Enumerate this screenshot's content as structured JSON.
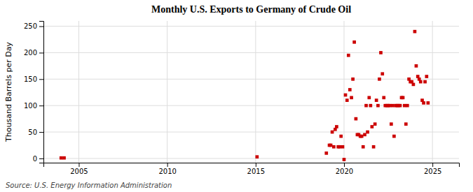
{
  "chart_data": {
    "type": "scatter",
    "title": "Monthly U.S. Exports to Germany of Crude Oil",
    "ylabel": "Thousand Barrels per Day",
    "source": "Source: U.S. Energy Information Administration",
    "color": "#cc0000",
    "marker": "square",
    "grid": true,
    "xlim": [
      2003.0,
      2026.5
    ],
    "ylim": [
      -8,
      260
    ],
    "xticks": [
      2005,
      2010,
      2015,
      2020,
      2025
    ],
    "yticks": [
      0,
      50,
      100,
      150,
      200,
      250
    ],
    "x": [
      2004.0,
      2004.17,
      2015.08,
      2019.0,
      2019.17,
      2019.25,
      2019.33,
      2019.42,
      2019.5,
      2019.58,
      2019.67,
      2019.75,
      2019.83,
      2019.92,
      2020.0,
      2020.08,
      2020.17,
      2020.25,
      2020.33,
      2020.42,
      2020.5,
      2020.58,
      2020.67,
      2020.75,
      2020.83,
      2020.92,
      2021.0,
      2021.08,
      2021.17,
      2021.25,
      2021.33,
      2021.42,
      2021.5,
      2021.58,
      2021.67,
      2021.75,
      2021.83,
      2021.92,
      2022.0,
      2022.08,
      2022.17,
      2022.25,
      2022.33,
      2022.42,
      2022.5,
      2022.58,
      2022.67,
      2022.75,
      2022.83,
      2022.92,
      2023.0,
      2023.08,
      2023.17,
      2023.25,
      2023.33,
      2023.42,
      2023.5,
      2023.58,
      2023.67,
      2023.75,
      2023.83,
      2023.92,
      2024.0,
      2024.08,
      2024.17,
      2024.25,
      2024.33,
      2024.42,
      2024.5,
      2024.58,
      2024.67,
      2024.75
    ],
    "values": [
      1,
      1,
      3,
      10,
      25,
      25,
      50,
      22,
      55,
      60,
      22,
      22,
      42,
      22,
      -2,
      120,
      110,
      195,
      130,
      115,
      150,
      220,
      75,
      45,
      45,
      42,
      42,
      22,
      45,
      100,
      50,
      115,
      100,
      60,
      22,
      65,
      110,
      100,
      150,
      200,
      160,
      115,
      100,
      100,
      100,
      100,
      65,
      100,
      42,
      100,
      100,
      100,
      100,
      115,
      115,
      100,
      65,
      100,
      150,
      145,
      145,
      140,
      240,
      175,
      155,
      150,
      145,
      110,
      105,
      145,
      155,
      105
    ]
  }
}
